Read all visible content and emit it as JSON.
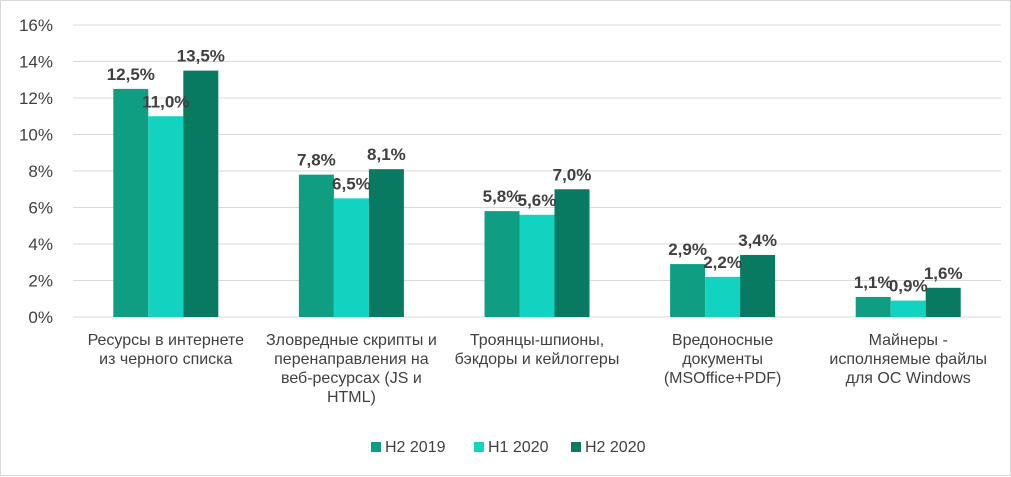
{
  "chart_data": {
    "type": "bar",
    "title": "",
    "xlabel": "",
    "ylabel": "",
    "ylim": [
      0,
      16
    ],
    "yticks": [
      "0%",
      "2%",
      "4%",
      "6%",
      "8%",
      "10%",
      "12%",
      "14%",
      "16%"
    ],
    "ytick_values": [
      0,
      2,
      4,
      6,
      8,
      10,
      12,
      14,
      16
    ],
    "grid": true,
    "legend_position": "bottom",
    "categories": [
      [
        "Ресурсы в интернете",
        "из черного списка"
      ],
      [
        "Зловредные скрипты и",
        "перенаправления на",
        "веб-ресурсах (JS и",
        "HTML)"
      ],
      [
        "Троянцы-шпионы,",
        "бэкдоры и кейлоггеры"
      ],
      [
        "Вредоносные",
        "документы",
        "(MSOffice+PDF)"
      ],
      [
        "Майнеры -",
        "исполняемые файлы",
        "для ОС Windows"
      ]
    ],
    "series": [
      {
        "name": "H2 2019",
        "color": "#0f9e82",
        "values": [
          12.5,
          7.8,
          5.8,
          2.9,
          1.1
        ],
        "labels": [
          "12,5%",
          "7,8%",
          "5,8%",
          "2,9%",
          "1,1%"
        ]
      },
      {
        "name": "H1 2020",
        "color": "#12d3c0",
        "values": [
          11.0,
          6.5,
          5.6,
          2.2,
          0.9
        ],
        "labels": [
          "11,0%",
          "6,5%",
          "5,6%",
          "2,2%",
          "0,9%"
        ]
      },
      {
        "name": "H2 2020",
        "color": "#087a62",
        "values": [
          13.5,
          8.1,
          7.0,
          3.4,
          1.6
        ],
        "labels": [
          "13,5%",
          "8,1%",
          "7,0%",
          "3,4%",
          "1,6%"
        ]
      }
    ]
  }
}
